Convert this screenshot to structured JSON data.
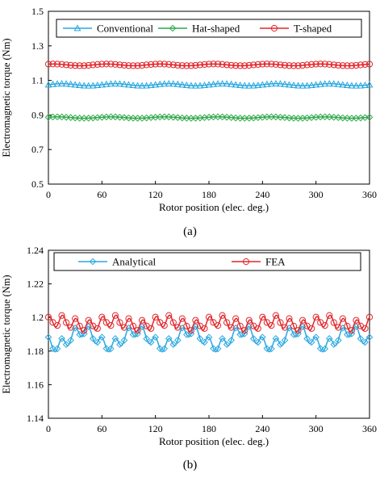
{
  "chart_data": [
    {
      "type": "line",
      "panel_label": "(a)",
      "title": "",
      "xlabel": "Rotor position (elec. deg.)",
      "ylabel": "Electromagnetic torque (Nm)",
      "xlim": [
        0,
        360
      ],
      "ylim": [
        0.5,
        1.5
      ],
      "xticks": [
        0,
        60,
        120,
        180,
        240,
        300,
        360
      ],
      "yticks": [
        0.5,
        0.7,
        0.9,
        1.1,
        1.3,
        1.5
      ],
      "ytick_labels": [
        "0.5",
        "0.7",
        "0.9",
        "1.1",
        "1.3",
        "1.5"
      ],
      "grid": false,
      "legend_position": "top",
      "series": [
        {
          "name": "Conventional",
          "color": "#29a8e0",
          "marker": "triangle",
          "mean": 1.075,
          "ripple": [
            [
              0.006,
              6,
              0
            ]
          ]
        },
        {
          "name": "Hat-shaped",
          "color": "#2ea84a",
          "marker": "diamond",
          "mean": 0.885,
          "ripple": [
            [
              0.004,
              6,
              0.5
            ]
          ]
        },
        {
          "name": "T-shaped",
          "color": "#e3262b",
          "marker": "circle",
          "mean": 1.19,
          "ripple": [
            [
              0.005,
              6,
              1.0
            ]
          ]
        }
      ]
    },
    {
      "type": "line",
      "panel_label": "(b)",
      "title": "",
      "xlabel": "Rotor position (elec. deg.)",
      "ylabel": "Electromagnetic torque (Nm)",
      "xlim": [
        0,
        360
      ],
      "ylim": [
        1.14,
        1.24
      ],
      "xticks": [
        0,
        60,
        120,
        180,
        240,
        300,
        360
      ],
      "yticks": [
        1.14,
        1.16,
        1.18,
        1.2,
        1.22,
        1.24
      ],
      "ytick_labels": [
        "1.14",
        "1.16",
        "1.18",
        "1.2",
        "1.22",
        "1.24"
      ],
      "grid": false,
      "legend_position": "top",
      "series": [
        {
          "name": "Analytical",
          "color": "#29a8e0",
          "marker": "diamond",
          "mean": 1.1875,
          "ripple": [
            [
              0.0045,
              6,
              3.8
            ],
            [
              0.0035,
              24,
              1.6
            ]
          ]
        },
        {
          "name": "FEA",
          "color": "#e3262b",
          "marker": "circle",
          "mean": 1.1965,
          "ripple": [
            [
              0.0035,
              24,
              1.2
            ],
            [
              0.0015,
              6,
              0.3
            ]
          ]
        }
      ]
    }
  ]
}
